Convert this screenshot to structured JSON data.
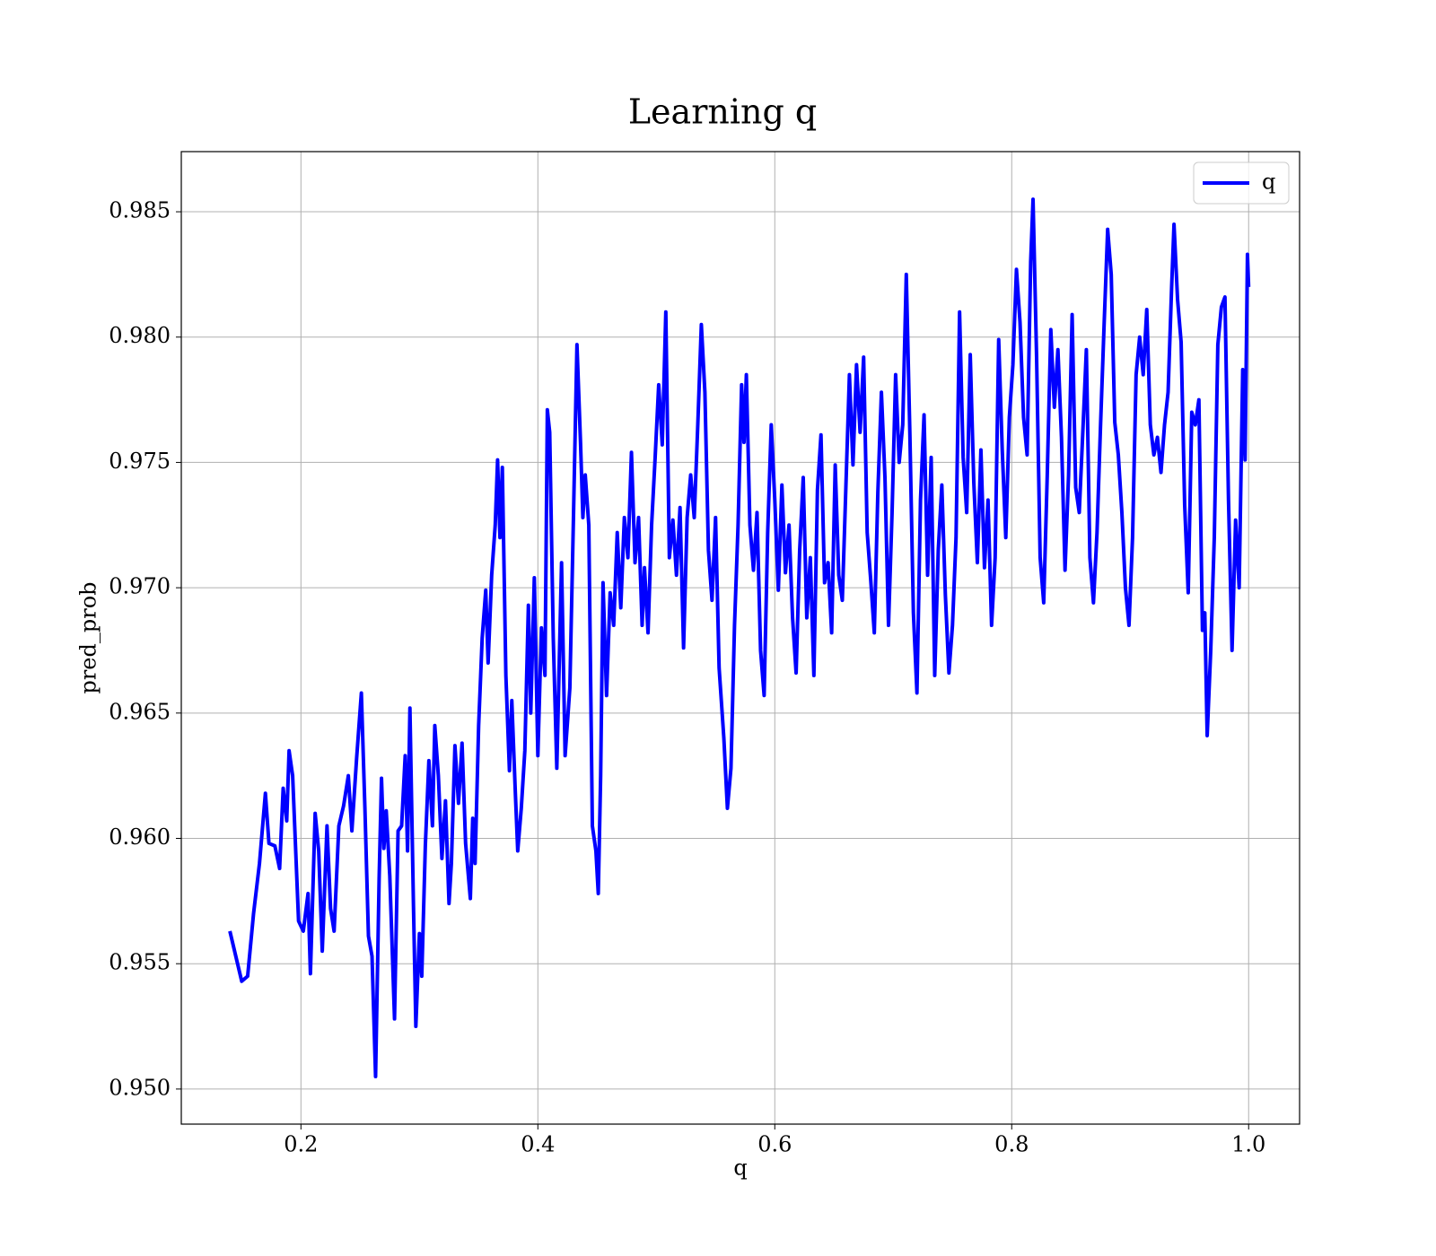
{
  "chart_data": {
    "type": "line",
    "title": "Learning q",
    "x_label": "q",
    "y_label": "pred_prob",
    "xlim": [
      0.099,
      1.043
    ],
    "ylim": [
      0.9486,
      0.9874
    ],
    "xticks": [
      0.2,
      0.4,
      0.6,
      0.8,
      {
        "value": 1,
        "label": "1.0"
      }
    ],
    "yticks": [
      {
        "value": 0.95,
        "label": "0.950"
      },
      0.955,
      {
        "value": 0.96,
        "label": "0.960"
      },
      0.965,
      {
        "value": 0.97,
        "label": "0.970"
      },
      0.975,
      {
        "value": 0.98,
        "label": "0.980"
      },
      0.985
    ],
    "grid": true,
    "legend": "upper right",
    "x": [
      0.14,
      0.15,
      0.155,
      0.16,
      0.165,
      0.17,
      0.173,
      0.178,
      0.182,
      0.185,
      0.188,
      0.19,
      0.193,
      0.198,
      0.202,
      0.206,
      0.208,
      0.212,
      0.215,
      0.218,
      0.222,
      0.225,
      0.228,
      0.232,
      0.236,
      0.24,
      0.243,
      0.247,
      0.251,
      0.254,
      0.257,
      0.26,
      0.263,
      0.266,
      0.268,
      0.27,
      0.272,
      0.275,
      0.279,
      0.282,
      0.285,
      0.288,
      0.29,
      0.292,
      0.295,
      0.297,
      0.3,
      0.302,
      0.305,
      0.308,
      0.311,
      0.313,
      0.316,
      0.319,
      0.322,
      0.325,
      0.327,
      0.33,
      0.333,
      0.336,
      0.339,
      0.343,
      0.345,
      0.347,
      0.35,
      0.353,
      0.356,
      0.358,
      0.361,
      0.364,
      0.366,
      0.368,
      0.37,
      0.373,
      0.376,
      0.378,
      0.381,
      0.383,
      0.386,
      0.389,
      0.392,
      0.394,
      0.397,
      0.4,
      0.403,
      0.406,
      0.408,
      0.41,
      0.413,
      0.416,
      0.42,
      0.423,
      0.427,
      0.43,
      0.433,
      0.436,
      0.438,
      0.44,
      0.443,
      0.446,
      0.449,
      0.451,
      0.453,
      0.455,
      0.458,
      0.461,
      0.464,
      0.467,
      0.47,
      0.473,
      0.476,
      0.479,
      0.482,
      0.485,
      0.488,
      0.49,
      0.493,
      0.496,
      0.499,
      0.502,
      0.505,
      0.508,
      0.511,
      0.514,
      0.517,
      0.52,
      0.523,
      0.526,
      0.529,
      0.532,
      0.535,
      0.538,
      0.541,
      0.544,
      0.547,
      0.55,
      0.553,
      0.557,
      0.56,
      0.563,
      0.566,
      0.569,
      0.572,
      0.574,
      0.576,
      0.579,
      0.582,
      0.585,
      0.588,
      0.591,
      0.594,
      0.597,
      0.6,
      0.603,
      0.606,
      0.609,
      0.612,
      0.615,
      0.618,
      0.621,
      0.624,
      0.627,
      0.63,
      0.633,
      0.636,
      0.639,
      0.642,
      0.645,
      0.648,
      0.651,
      0.654,
      0.657,
      0.66,
      0.663,
      0.666,
      0.669,
      0.672,
      0.675,
      0.678,
      0.681,
      0.684,
      0.687,
      0.69,
      0.693,
      0.696,
      0.699,
      0.702,
      0.705,
      0.708,
      0.711,
      0.714,
      0.717,
      0.72,
      0.723,
      0.726,
      0.729,
      0.732,
      0.735,
      0.738,
      0.741,
      0.744,
      0.747,
      0.75,
      0.753,
      0.756,
      0.759,
      0.762,
      0.765,
      0.768,
      0.771,
      0.774,
      0.777,
      0.78,
      0.783,
      0.786,
      0.789,
      0.792,
      0.795,
      0.798,
      0.801,
      0.804,
      0.807,
      0.81,
      0.813,
      0.816,
      0.818,
      0.821,
      0.824,
      0.827,
      0.83,
      0.833,
      0.836,
      0.839,
      0.842,
      0.845,
      0.848,
      0.851,
      0.854,
      0.857,
      0.86,
      0.863,
      0.866,
      0.869,
      0.872,
      0.875,
      0.878,
      0.881,
      0.884,
      0.887,
      0.89,
      0.893,
      0.896,
      0.899,
      0.902,
      0.905,
      0.908,
      0.911,
      0.914,
      0.917,
      0.92,
      0.923,
      0.926,
      0.929,
      0.932,
      0.935,
      0.937,
      0.94,
      0.943,
      0.946,
      0.949,
      0.952,
      0.955,
      0.958,
      0.961,
      0.963,
      0.965,
      0.968,
      0.971,
      0.974,
      0.977,
      0.98,
      0.983,
      0.986,
      0.989,
      0.992,
      0.995,
      0.997,
      0.999,
      1.0
    ],
    "series": [
      {
        "name": "q",
        "color": "#0000ff",
        "values": [
          0.9563,
          0.9543,
          0.9545,
          0.957,
          0.959,
          0.9618,
          0.9598,
          0.9597,
          0.9588,
          0.962,
          0.9607,
          0.9635,
          0.9625,
          0.9567,
          0.9563,
          0.9578,
          0.9546,
          0.961,
          0.9595,
          0.9555,
          0.9605,
          0.9572,
          0.9563,
          0.9605,
          0.9613,
          0.9625,
          0.9603,
          0.9632,
          0.9658,
          0.9612,
          0.9561,
          0.9553,
          0.9505,
          0.9584,
          0.9624,
          0.9596,
          0.9611,
          0.9585,
          0.9528,
          0.9603,
          0.9605,
          0.9633,
          0.9595,
          0.9652,
          0.9573,
          0.9525,
          0.9562,
          0.9545,
          0.9597,
          0.9631,
          0.9605,
          0.9645,
          0.9625,
          0.9592,
          0.9615,
          0.9574,
          0.959,
          0.9637,
          0.9614,
          0.9638,
          0.9598,
          0.9576,
          0.9608,
          0.959,
          0.9645,
          0.968,
          0.9699,
          0.967,
          0.9705,
          0.9725,
          0.9751,
          0.972,
          0.9748,
          0.9665,
          0.9627,
          0.9655,
          0.9618,
          0.9595,
          0.9612,
          0.9635,
          0.9693,
          0.965,
          0.9704,
          0.9633,
          0.9684,
          0.9665,
          0.9771,
          0.9762,
          0.968,
          0.9628,
          0.971,
          0.9633,
          0.966,
          0.9727,
          0.9797,
          0.9758,
          0.9728,
          0.9745,
          0.9725,
          0.9605,
          0.9595,
          0.9578,
          0.9625,
          0.9702,
          0.9657,
          0.9698,
          0.9685,
          0.9722,
          0.9692,
          0.9728,
          0.9712,
          0.9754,
          0.971,
          0.9728,
          0.9685,
          0.9708,
          0.9682,
          0.9725,
          0.9752,
          0.9781,
          0.9757,
          0.981,
          0.9712,
          0.9727,
          0.9705,
          0.9732,
          0.9676,
          0.9728,
          0.9745,
          0.9728,
          0.9765,
          0.9805,
          0.9778,
          0.9715,
          0.9695,
          0.9728,
          0.9668,
          0.964,
          0.9612,
          0.9628,
          0.9685,
          0.9725,
          0.9781,
          0.9758,
          0.9785,
          0.9725,
          0.9707,
          0.973,
          0.9675,
          0.9657,
          0.9722,
          0.9765,
          0.9735,
          0.9699,
          0.9741,
          0.9706,
          0.9725,
          0.9688,
          0.9666,
          0.9715,
          0.9744,
          0.9688,
          0.9712,
          0.9665,
          0.9739,
          0.9761,
          0.9702,
          0.971,
          0.9682,
          0.9749,
          0.9705,
          0.9695,
          0.974,
          0.9785,
          0.9749,
          0.9789,
          0.9762,
          0.9792,
          0.9722,
          0.9703,
          0.9682,
          0.9738,
          0.9778,
          0.9744,
          0.9685,
          0.973,
          0.9785,
          0.975,
          0.9765,
          0.9825,
          0.9762,
          0.969,
          0.9658,
          0.9735,
          0.9769,
          0.9705,
          0.9752,
          0.9665,
          0.9715,
          0.9741,
          0.9697,
          0.9666,
          0.9685,
          0.972,
          0.981,
          0.9752,
          0.973,
          0.9793,
          0.9742,
          0.971,
          0.9755,
          0.9708,
          0.9735,
          0.9685,
          0.9712,
          0.9799,
          0.9755,
          0.972,
          0.9768,
          0.9789,
          0.9827,
          0.9806,
          0.9768,
          0.9753,
          0.983,
          0.9855,
          0.9792,
          0.9712,
          0.9694,
          0.9745,
          0.9803,
          0.9772,
          0.9795,
          0.976,
          0.9707,
          0.9745,
          0.9809,
          0.974,
          0.973,
          0.9762,
          0.9795,
          0.9712,
          0.9694,
          0.9722,
          0.9765,
          0.9805,
          0.9843,
          0.9825,
          0.9766,
          0.9753,
          0.973,
          0.97,
          0.9685,
          0.972,
          0.9785,
          0.98,
          0.9785,
          0.9811,
          0.9765,
          0.9753,
          0.976,
          0.9746,
          0.9765,
          0.9778,
          0.982,
          0.9845,
          0.9815,
          0.9798,
          0.9733,
          0.9698,
          0.977,
          0.9765,
          0.9775,
          0.9683,
          0.969,
          0.9641,
          0.9675,
          0.972,
          0.9797,
          0.9812,
          0.9816,
          0.9735,
          0.9675,
          0.9727,
          0.97,
          0.9787,
          0.9751,
          0.9833,
          0.982
        ]
      }
    ]
  }
}
